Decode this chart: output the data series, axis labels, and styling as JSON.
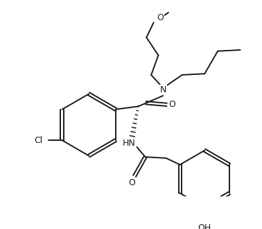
{
  "bg_color": "#ffffff",
  "line_color": "#1a1a1a",
  "line_width": 1.5,
  "figsize": [
    3.78,
    3.3
  ],
  "dpi": 100,
  "nodes": {
    "Cl": "Cl",
    "N": "N",
    "O1": "O",
    "O2": "O",
    "HN": "HN",
    "OH": "OH"
  }
}
